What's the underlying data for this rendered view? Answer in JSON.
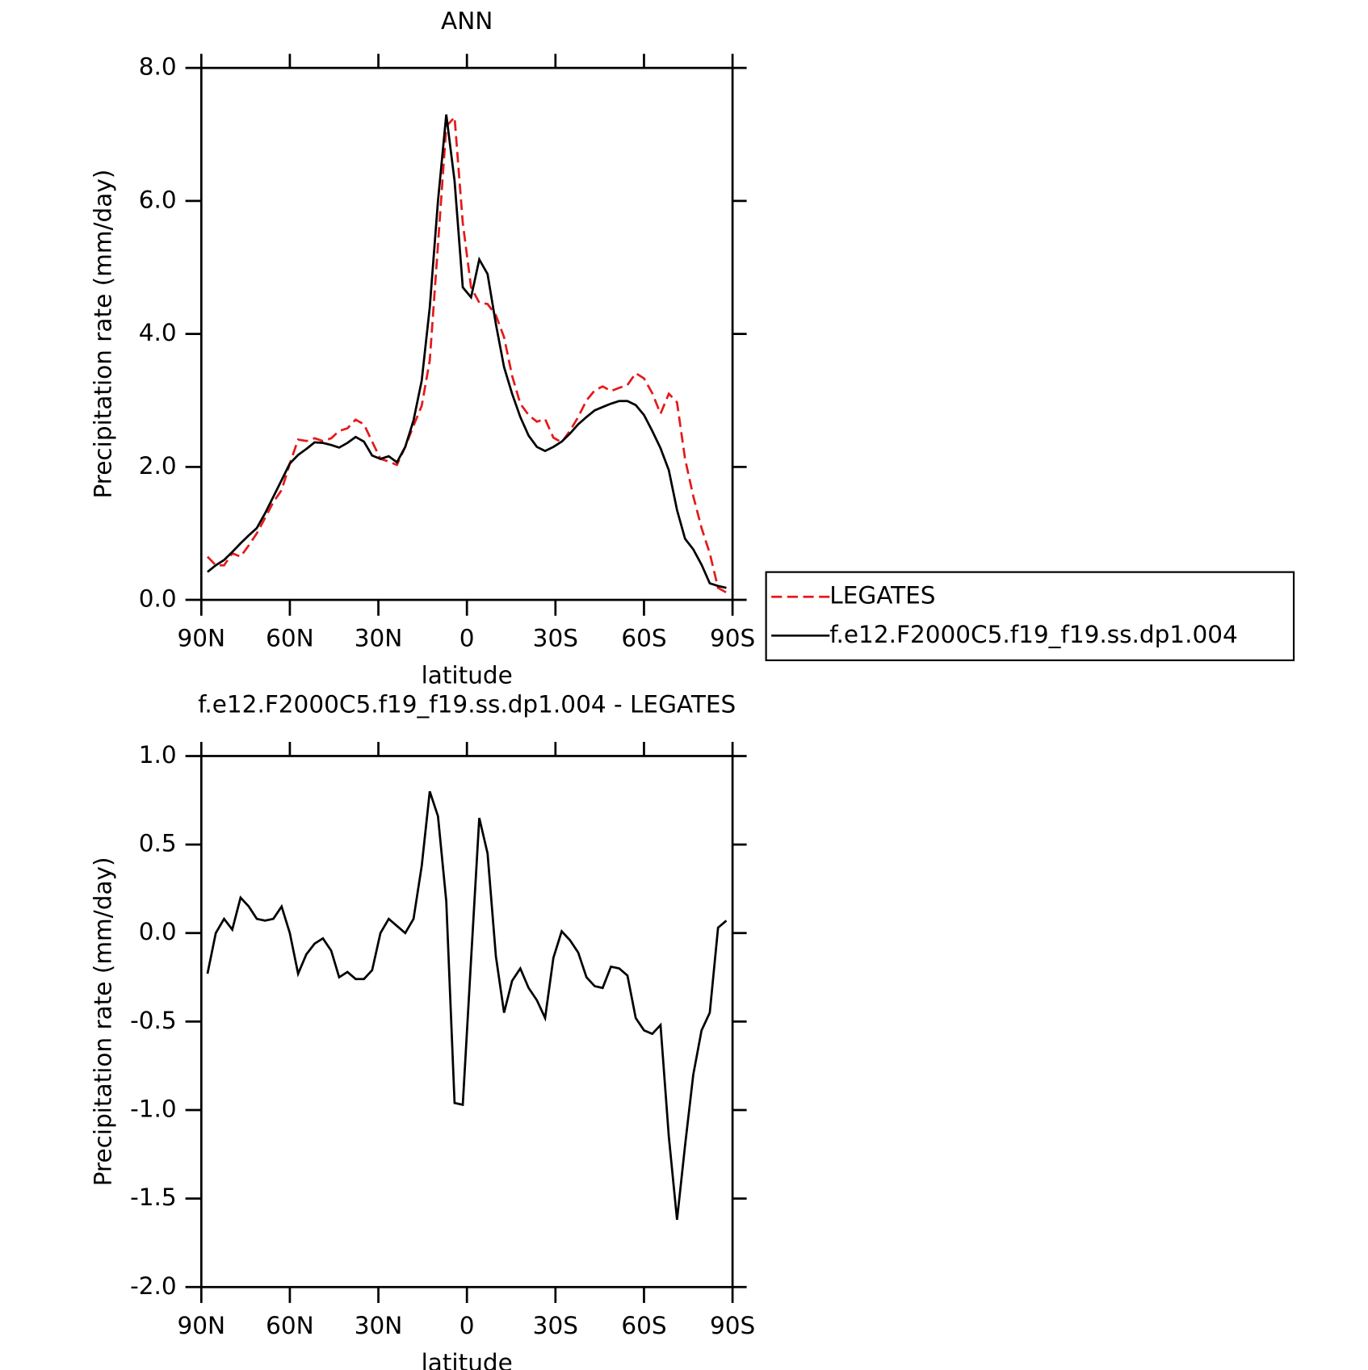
{
  "chart_data": [
    {
      "type": "line",
      "title": "ANN",
      "xlabel": "latitude",
      "ylabel": "Precipitation rate (mm/day)",
      "x": [
        87.9,
        85.1,
        82.3,
        79.5,
        76.7,
        73.9,
        71.2,
        68.4,
        65.6,
        62.8,
        60.0,
        57.2,
        54.4,
        51.6,
        48.8,
        46.0,
        43.3,
        40.5,
        37.7,
        34.9,
        32.1,
        29.3,
        26.5,
        23.7,
        20.9,
        18.1,
        15.3,
        12.6,
        9.8,
        7.0,
        4.2,
        1.4,
        -1.4,
        -4.2,
        -7.0,
        -9.8,
        -12.6,
        -15.3,
        -18.1,
        -20.9,
        -23.7,
        -26.5,
        -29.3,
        -32.1,
        -34.9,
        -37.7,
        -40.5,
        -43.3,
        -46.0,
        -48.8,
        -51.6,
        -54.4,
        -57.2,
        -60.0,
        -62.8,
        -65.6,
        -68.4,
        -71.2,
        -73.9,
        -76.7,
        -79.5,
        -82.3,
        -85.1,
        -87.9
      ],
      "series": [
        {
          "name": "LEGATES",
          "color": "#e41a1c",
          "dash": true,
          "values": [
            0.65,
            0.52,
            0.52,
            0.7,
            0.65,
            0.82,
            1.0,
            1.23,
            1.47,
            1.65,
            2.05,
            2.41,
            2.39,
            2.43,
            2.39,
            2.43,
            2.54,
            2.58,
            2.71,
            2.64,
            2.38,
            2.12,
            2.08,
            2.03,
            2.3,
            2.62,
            2.92,
            3.6,
            5.34,
            7.12,
            7.26,
            5.67,
            4.7,
            4.47,
            4.45,
            4.28,
            3.95,
            3.37,
            2.95,
            2.78,
            2.68,
            2.72,
            2.44,
            2.37,
            2.54,
            2.75,
            3.0,
            3.15,
            3.21,
            3.14,
            3.19,
            3.23,
            3.41,
            3.33,
            3.11,
            2.8,
            3.1,
            2.97,
            2.12,
            1.56,
            1.08,
            0.7,
            0.18,
            0.11
          ]
        },
        {
          "name": "f.e12.F2000C5.f19_f19.ss.dp1.004",
          "color": "#000000",
          "dash": false,
          "values": [
            0.42,
            0.52,
            0.6,
            0.72,
            0.85,
            0.97,
            1.08,
            1.3,
            1.55,
            1.8,
            2.05,
            2.18,
            2.27,
            2.37,
            2.36,
            2.33,
            2.29,
            2.36,
            2.45,
            2.38,
            2.17,
            2.12,
            2.16,
            2.07,
            2.3,
            2.7,
            3.3,
            4.4,
            6.0,
            7.3,
            6.3,
            4.7,
            4.55,
            5.12,
            4.9,
            4.15,
            3.5,
            3.1,
            2.75,
            2.47,
            2.3,
            2.24,
            2.3,
            2.38,
            2.5,
            2.64,
            2.75,
            2.85,
            2.9,
            2.95,
            2.99,
            2.99,
            2.93,
            2.78,
            2.54,
            2.28,
            1.95,
            1.35,
            0.92,
            0.76,
            0.53,
            0.25,
            0.21,
            0.18
          ]
        }
      ],
      "xlim": [
        90,
        -90
      ],
      "xticks": [
        {
          "value": 90,
          "label": "90N"
        },
        {
          "value": 60,
          "label": "60N"
        },
        {
          "value": 30,
          "label": "30N"
        },
        0,
        {
          "value": -30,
          "label": "30S"
        },
        {
          "value": -60,
          "label": "60S"
        },
        {
          "value": -90,
          "label": "90S"
        }
      ],
      "ylim": [
        0,
        8
      ],
      "yticks": [
        {
          "value": 0,
          "label": "0.0"
        },
        {
          "value": 2,
          "label": "2.0"
        },
        {
          "value": 4,
          "label": "4.0"
        },
        {
          "value": 6,
          "label": "6.0"
        },
        {
          "value": 8,
          "label": "8.0"
        }
      ],
      "legend": "right"
    },
    {
      "type": "line",
      "title": "f.e12.F2000C5.f19_f19.ss.dp1.004 - LEGATES",
      "xlabel": "latitude",
      "ylabel": "Precipitation rate (mm/day)",
      "x": [
        87.9,
        85.1,
        82.3,
        79.5,
        76.7,
        73.9,
        71.2,
        68.4,
        65.6,
        62.8,
        60.0,
        57.2,
        54.4,
        51.6,
        48.8,
        46.0,
        43.3,
        40.5,
        37.7,
        34.9,
        32.1,
        29.3,
        26.5,
        23.7,
        20.9,
        18.1,
        15.3,
        12.6,
        9.8,
        7.0,
        4.2,
        1.4,
        -1.4,
        -4.2,
        -7.0,
        -9.8,
        -12.6,
        -15.3,
        -18.1,
        -20.9,
        -23.7,
        -26.5,
        -29.3,
        -32.1,
        -34.9,
        -37.7,
        -40.5,
        -43.3,
        -46.0,
        -48.8,
        -51.6,
        -54.4,
        -57.2,
        -60.0,
        -62.8,
        -65.6,
        -68.4,
        -71.2,
        -73.9,
        -76.7,
        -79.5,
        -82.3,
        -85.1,
        -87.9
      ],
      "color": "#000000",
      "values": [
        -0.23,
        0.0,
        0.08,
        0.02,
        0.2,
        0.15,
        0.08,
        0.07,
        0.08,
        0.15,
        0.0,
        -0.23,
        -0.12,
        -0.06,
        -0.03,
        -0.1,
        -0.25,
        -0.22,
        -0.26,
        -0.26,
        -0.21,
        0.0,
        0.08,
        0.04,
        0.0,
        0.08,
        0.38,
        0.8,
        0.66,
        0.18,
        -0.96,
        -0.97,
        -0.15,
        0.65,
        0.45,
        -0.13,
        -0.45,
        -0.27,
        -0.2,
        -0.31,
        -0.38,
        -0.48,
        -0.14,
        0.01,
        -0.04,
        -0.11,
        -0.25,
        -0.3,
        -0.31,
        -0.19,
        -0.2,
        -0.24,
        -0.48,
        -0.55,
        -0.57,
        -0.52,
        -1.15,
        -1.62,
        -1.2,
        -0.8,
        -0.55,
        -0.45,
        0.03,
        0.07
      ],
      "xlim": [
        90,
        -90
      ],
      "xticks": [
        {
          "value": 90,
          "label": "90N"
        },
        {
          "value": 60,
          "label": "60N"
        },
        {
          "value": 30,
          "label": "30N"
        },
        0,
        {
          "value": -30,
          "label": "30S"
        },
        {
          "value": -60,
          "label": "60S"
        },
        {
          "value": -90,
          "label": "90S"
        }
      ],
      "ylim": [
        -2,
        1
      ],
      "yticks": [
        {
          "value": -2,
          "label": "-2.0"
        },
        {
          "value": -1.5,
          "label": "-1.5"
        },
        {
          "value": -1,
          "label": "-1.0"
        },
        {
          "value": -0.5,
          "label": "-0.5"
        },
        {
          "value": 0,
          "label": "0.0"
        },
        {
          "value": 0.5,
          "label": "0.5"
        },
        {
          "value": 1,
          "label": "1.0"
        }
      ]
    }
  ]
}
